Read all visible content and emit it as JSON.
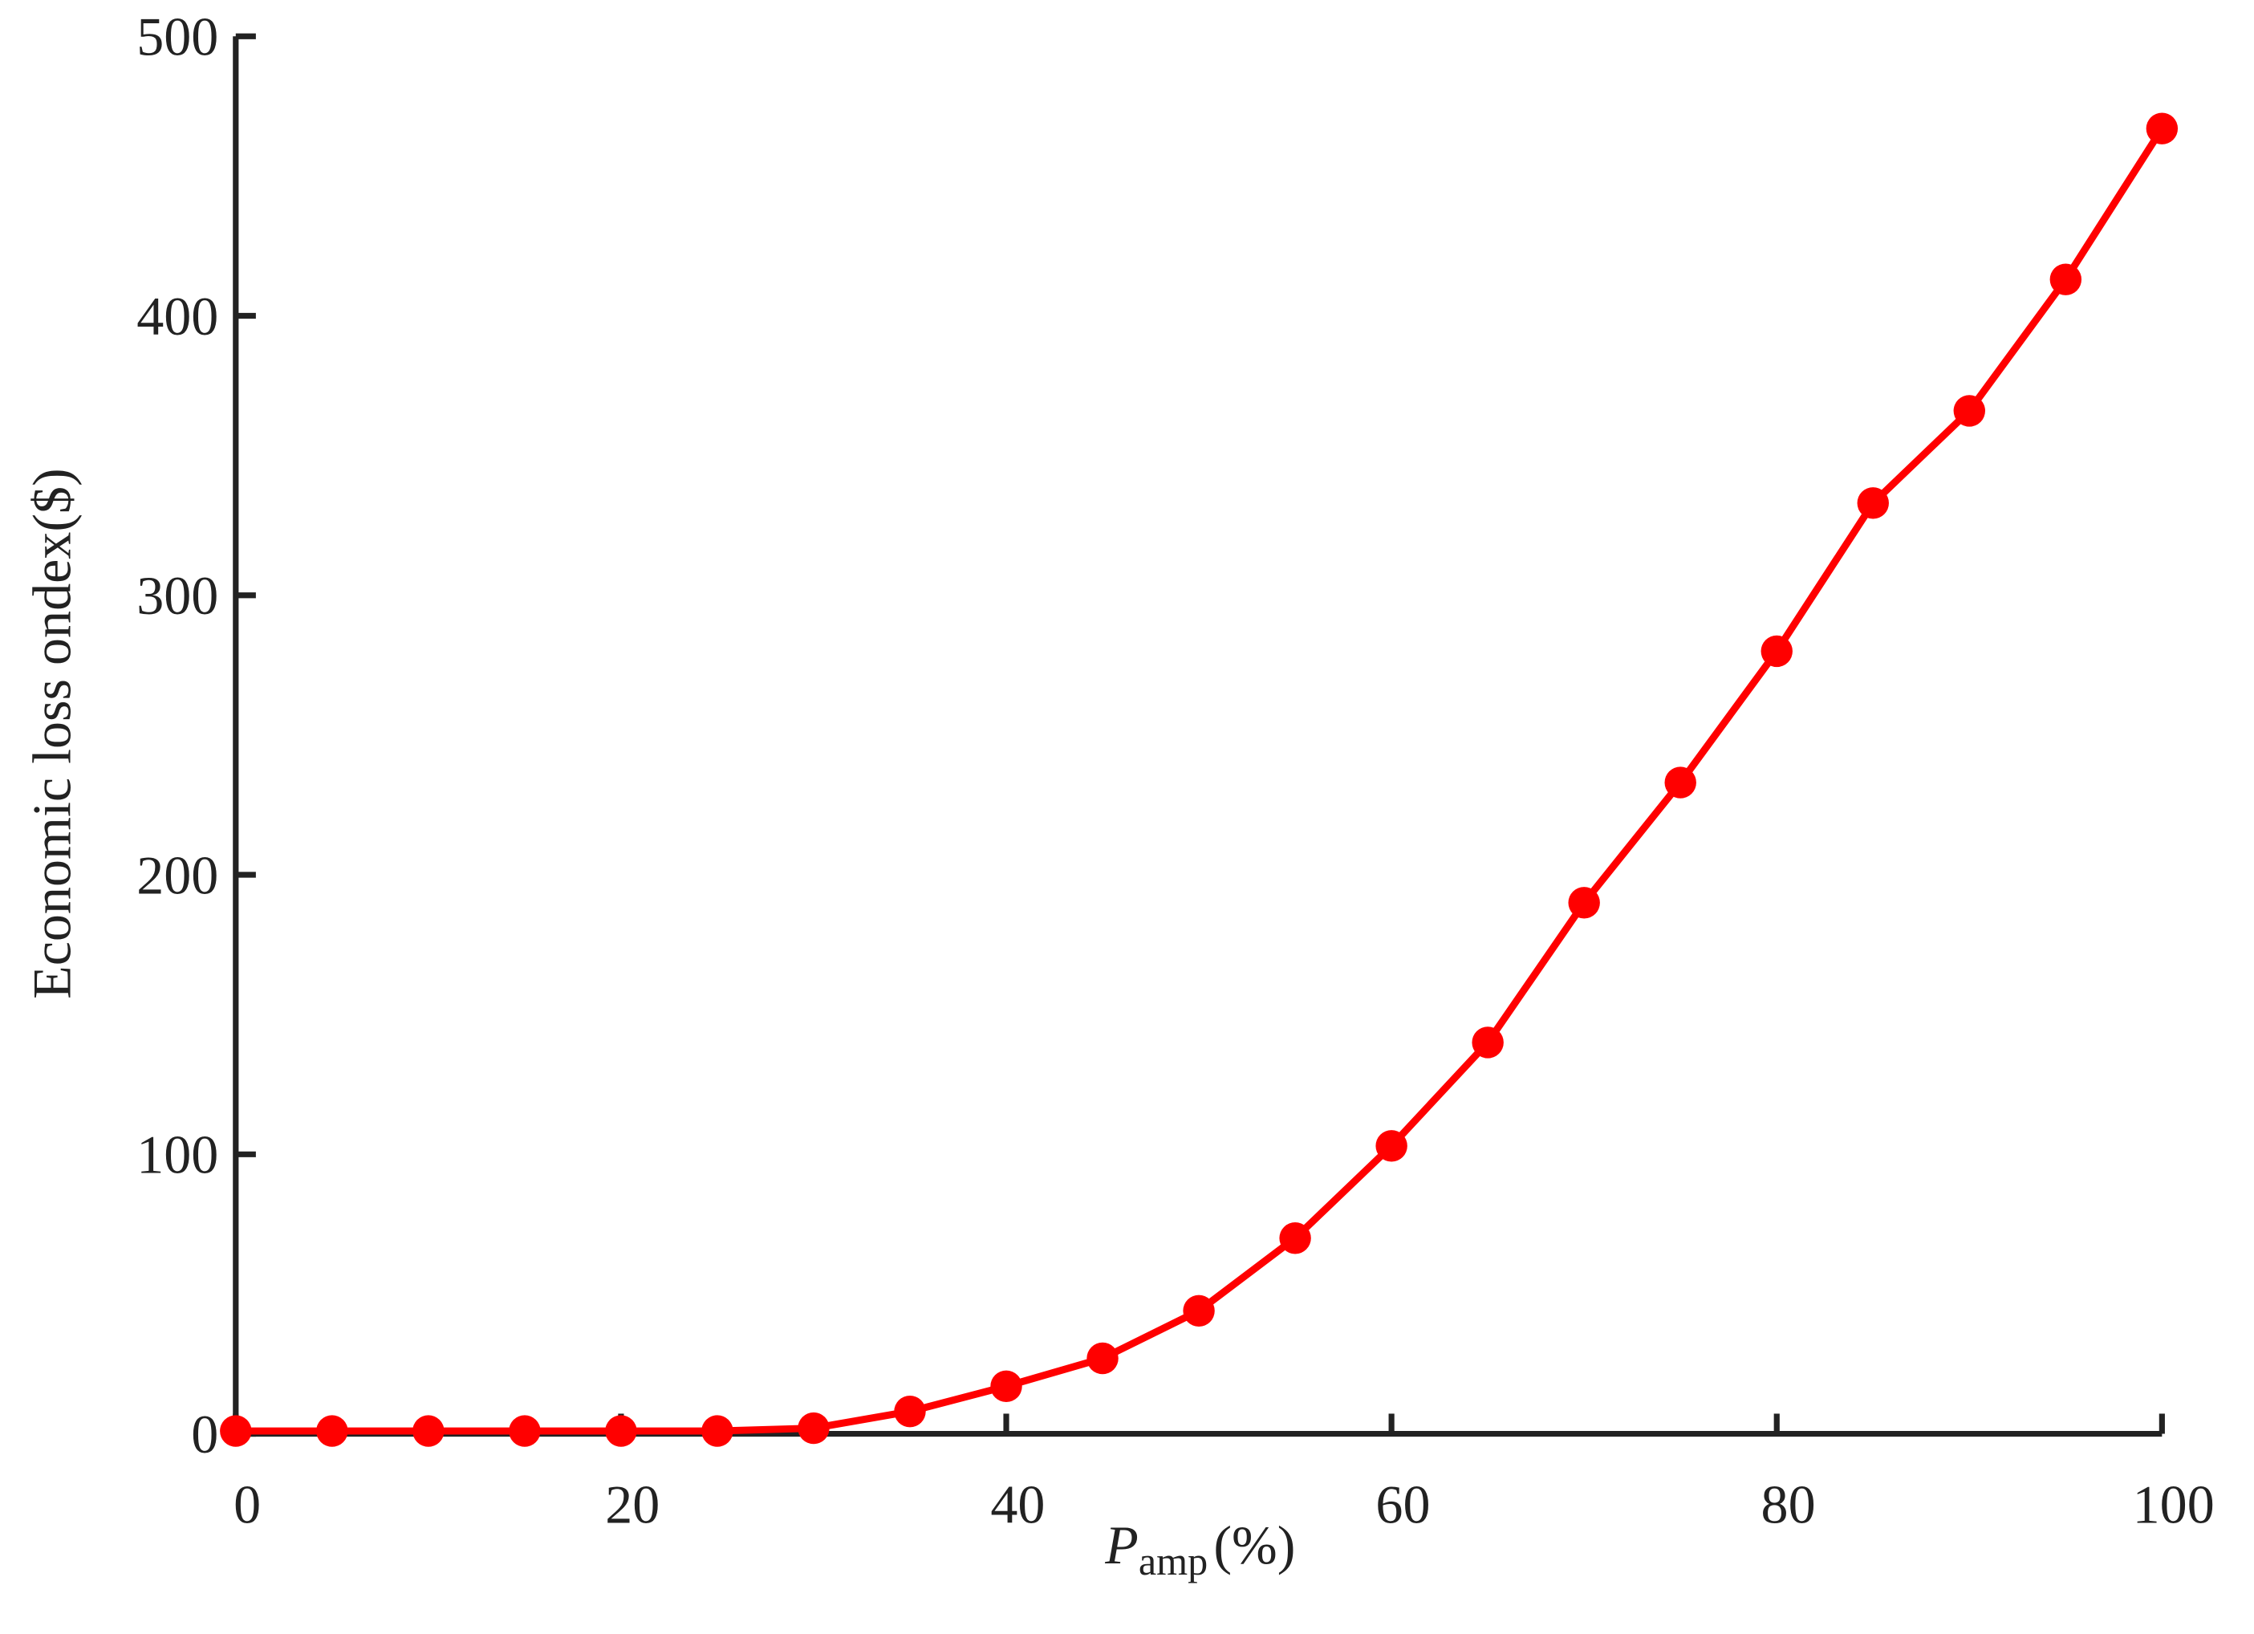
{
  "chart_data": {
    "type": "line",
    "y_label": "Economic loss ondex($)",
    "x_label": {
      "main": "P",
      "sub": "amp",
      "unit": "(%)"
    },
    "x": [
      0,
      5,
      10,
      15,
      20,
      25,
      30,
      35,
      40,
      45,
      50,
      55,
      60,
      65,
      70,
      75,
      80,
      85,
      90,
      95,
      100
    ],
    "series": [
      {
        "color": "#ff0000",
        "values": [
          1,
          1,
          1,
          1,
          1,
          1,
          2,
          8,
          17,
          27,
          44,
          70,
          103,
          140,
          190,
          233,
          280,
          333,
          366,
          413,
          467
        ]
      }
    ],
    "xlim": [
      0,
      100
    ],
    "xticks": [
      0,
      20,
      40,
      60,
      80,
      100
    ],
    "ylim": [
      0,
      500
    ],
    "yticks": [
      0,
      100,
      200,
      300,
      400,
      500
    ],
    "grid": false
  }
}
